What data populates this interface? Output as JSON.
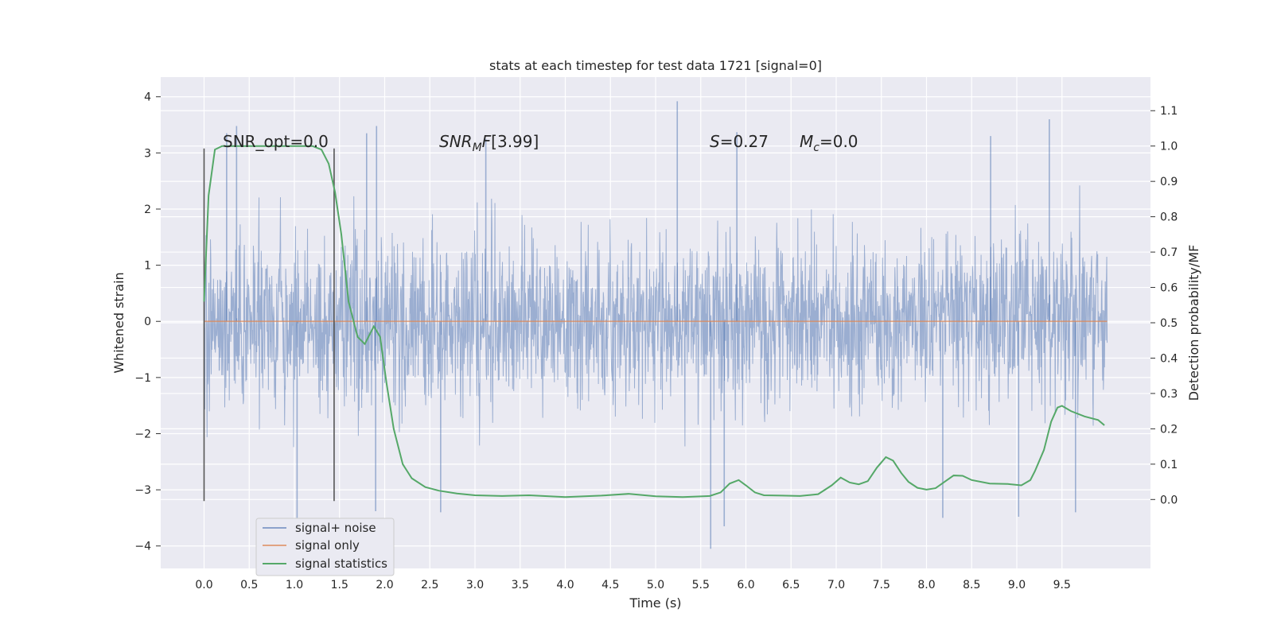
{
  "chart_data": {
    "type": "line",
    "title": "stats at each timestep for test data 1721 [signal=0]",
    "xlabel": "Time (s)",
    "ylabel_left": "Whitened strain",
    "ylabel_right": "Detection probability/MF",
    "xlim": [
      -0.48,
      10.48
    ],
    "ylim_left": [
      -4.4,
      4.35
    ],
    "ylim_right": [
      -0.195,
      1.195
    ],
    "x_ticks": [
      "0.0",
      "0.5",
      "1.0",
      "1.5",
      "2.0",
      "2.5",
      "3.0",
      "3.5",
      "4.0",
      "4.5",
      "5.0",
      "5.5",
      "6.0",
      "6.5",
      "7.0",
      "7.5",
      "8.0",
      "8.5",
      "9.0",
      "9.5"
    ],
    "y_ticks_left": [
      "4",
      "3",
      "2",
      "1",
      "0",
      "−1",
      "−2",
      "−3",
      "−4"
    ],
    "y_ticks_right": [
      "1.1",
      "1.0",
      "0.9",
      "0.8",
      "0.7",
      "0.6",
      "0.5",
      "0.4",
      "0.3",
      "0.2",
      "0.1",
      "0.0"
    ],
    "grid": true,
    "legend": {
      "location": "lower-left",
      "entries": [
        "signal+ noise",
        "signal only",
        "signal statistics"
      ]
    },
    "colors": {
      "signal_noise": "#4c72b0",
      "signal_only": "#dd8452",
      "signal_statistics": "#55a868",
      "background": "#eaeaf2",
      "grid": "#ffffff",
      "markers": "#555555"
    },
    "annotations": {
      "snr_opt": "SNR_opt=0.0",
      "snr_mf": "[3.99]",
      "s_value": "=0.27",
      "mc_value": "=0.0"
    },
    "vertical_markers_x": [
      0.0,
      1.44
    ],
    "signal_noise": {
      "description_range": [
        0.0,
        10.0
      ],
      "y_min": -4.05,
      "y_max": 3.92,
      "spikes": [
        {
          "x": 0.25,
          "y": 3.35
        },
        {
          "x": 0.36,
          "y": 3.48
        },
        {
          "x": 1.03,
          "y": -3.5
        },
        {
          "x": 1.8,
          "y": 3.35
        },
        {
          "x": 1.91,
          "y": 3.48
        },
        {
          "x": 1.9,
          "y": -3.38
        },
        {
          "x": 2.62,
          "y": -3.4
        },
        {
          "x": 3.12,
          "y": 3.25
        },
        {
          "x": 5.24,
          "y": 3.92
        },
        {
          "x": 5.61,
          "y": -4.05
        },
        {
          "x": 5.76,
          "y": -3.65
        },
        {
          "x": 5.9,
          "y": 3.37
        },
        {
          "x": 8.18,
          "y": -3.5
        },
        {
          "x": 8.71,
          "y": 3.3
        },
        {
          "x": 9.02,
          "y": -3.48
        },
        {
          "x": 9.36,
          "y": 3.6
        },
        {
          "x": 9.65,
          "y": -3.4
        }
      ]
    },
    "signal_only": {
      "x": [
        0.0,
        10.0
      ],
      "y": [
        0.0,
        0.0
      ]
    },
    "signal_statistics": {
      "x": [
        0.0,
        0.05,
        0.12,
        0.2,
        0.4,
        0.8,
        1.2,
        1.3,
        1.38,
        1.45,
        1.52,
        1.6,
        1.7,
        1.78,
        1.88,
        1.95,
        2.02,
        2.1,
        2.2,
        2.3,
        2.45,
        2.6,
        2.8,
        3.0,
        3.3,
        3.6,
        4.0,
        4.4,
        4.7,
        5.0,
        5.3,
        5.6,
        5.72,
        5.82,
        5.92,
        6.0,
        6.1,
        6.2,
        6.4,
        6.6,
        6.8,
        6.95,
        7.05,
        7.15,
        7.25,
        7.35,
        7.45,
        7.55,
        7.63,
        7.72,
        7.8,
        7.9,
        8.0,
        8.1,
        8.2,
        8.3,
        8.4,
        8.5,
        8.7,
        8.9,
        9.05,
        9.15,
        9.2,
        9.3,
        9.38,
        9.45,
        9.5,
        9.6,
        9.75,
        9.9,
        9.97
      ],
      "y": [
        0.56,
        0.86,
        0.99,
        1.0,
        1.0,
        1.0,
        1.0,
        0.99,
        0.95,
        0.87,
        0.75,
        0.56,
        0.46,
        0.44,
        0.49,
        0.46,
        0.33,
        0.2,
        0.1,
        0.06,
        0.035,
        0.025,
        0.017,
        0.012,
        0.01,
        0.012,
        0.007,
        0.011,
        0.016,
        0.009,
        0.007,
        0.01,
        0.02,
        0.045,
        0.055,
        0.04,
        0.02,
        0.012,
        0.011,
        0.01,
        0.015,
        0.04,
        0.062,
        0.048,
        0.043,
        0.052,
        0.09,
        0.12,
        0.11,
        0.075,
        0.05,
        0.033,
        0.028,
        0.032,
        0.05,
        0.068,
        0.067,
        0.055,
        0.045,
        0.044,
        0.04,
        0.055,
        0.08,
        0.14,
        0.22,
        0.26,
        0.265,
        0.25,
        0.235,
        0.225,
        0.21
      ]
    }
  }
}
